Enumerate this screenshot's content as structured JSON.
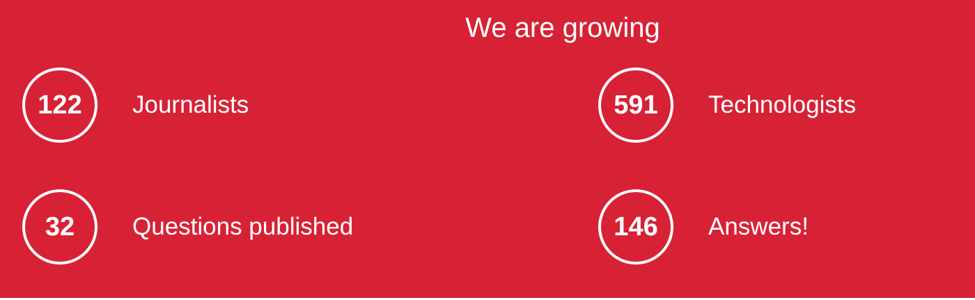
{
  "section": {
    "title": "We are growing",
    "background_color": "#d72236",
    "stats": [
      {
        "value": "122",
        "label": "Journalists"
      },
      {
        "value": "591",
        "label": "Technologists"
      },
      {
        "value": "32",
        "label": "Questions published"
      },
      {
        "value": "146",
        "label": "Answers!"
      }
    ]
  }
}
